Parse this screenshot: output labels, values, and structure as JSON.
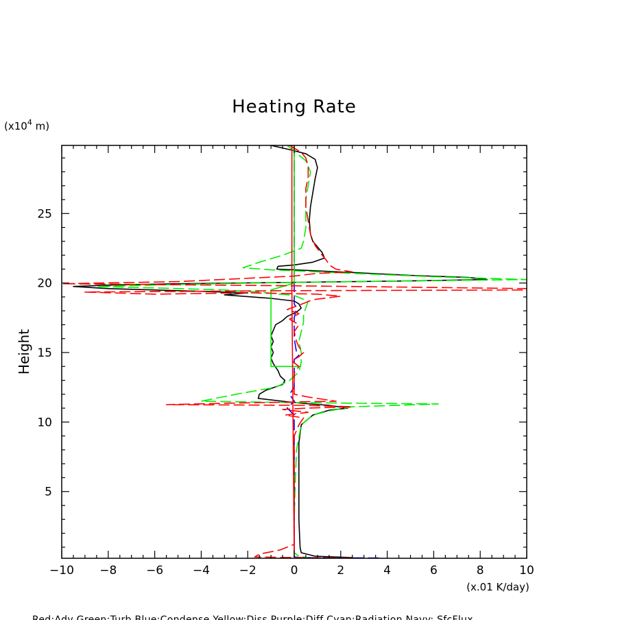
{
  "chart_data": {
    "type": "line",
    "title": "Heating Rate",
    "ylabel": "Height",
    "y_unit_prefix": "(x10",
    "y_unit_exp": "4",
    "y_unit_suffix": " m)",
    "x_unit": "(x.01 K/day)",
    "footer": "Red:Adv  Green:Turb  Blue:Condense  Yellow:Diss  Purple:Diff  Cyan:Radiation  Navy: SfcFlux",
    "xlim": [
      -10,
      10
    ],
    "ylim": [
      0.2,
      29.9
    ],
    "x_ticks": [
      -10,
      -8,
      -6,
      -4,
      -2,
      0,
      2,
      4,
      6,
      8,
      10
    ],
    "y_ticks": [
      5,
      10,
      15,
      20,
      25
    ],
    "grid": false,
    "colors": {
      "black": "#000000",
      "red": "#ff0000",
      "green": "#00ee00",
      "blue": "#0000ff"
    },
    "series": [
      {
        "color": "black",
        "dashed": false,
        "points": [
          [
            -1.0,
            29.9
          ],
          [
            -0.2,
            29.6
          ],
          [
            0.5,
            29.3
          ],
          [
            0.9,
            28.9
          ],
          [
            1.0,
            28.3
          ],
          [
            0.9,
            27.5
          ],
          [
            0.8,
            26.5
          ],
          [
            0.7,
            25.5
          ],
          [
            0.65,
            24.5
          ],
          [
            0.7,
            23.5
          ],
          [
            0.8,
            23.0
          ],
          [
            1.0,
            22.6
          ],
          [
            1.2,
            22.2
          ],
          [
            1.3,
            21.8
          ],
          [
            0.8,
            21.5
          ],
          [
            0.0,
            21.3
          ],
          [
            -0.7,
            21.2
          ],
          [
            -0.75,
            21.0
          ],
          [
            0.0,
            20.95
          ],
          [
            2.0,
            20.8
          ],
          [
            5.0,
            20.55
          ],
          [
            7.5,
            20.4
          ],
          [
            8.3,
            20.25
          ],
          [
            5.0,
            20.15
          ],
          [
            0.0,
            20.05
          ],
          [
            -5.0,
            19.95
          ],
          [
            -8.0,
            19.85
          ],
          [
            -9.5,
            19.75
          ],
          [
            -8.0,
            19.6
          ],
          [
            -5.0,
            19.45
          ],
          [
            -2.0,
            19.3
          ],
          [
            -3.0,
            19.15
          ],
          [
            -1.0,
            18.9
          ],
          [
            0.0,
            18.7
          ],
          [
            0.2,
            18.5
          ],
          [
            0.3,
            18.2
          ],
          [
            0.1,
            17.9
          ],
          [
            -0.3,
            17.6
          ],
          [
            -0.5,
            17.3
          ],
          [
            -0.8,
            17.0
          ],
          [
            -0.9,
            16.6
          ],
          [
            -1.0,
            16.2
          ],
          [
            -0.9,
            15.8
          ],
          [
            -1.0,
            15.4
          ],
          [
            -0.9,
            15.0
          ],
          [
            -1.0,
            14.6
          ],
          [
            -0.9,
            14.2
          ],
          [
            -0.7,
            13.7
          ],
          [
            -0.6,
            13.3
          ],
          [
            -0.4,
            13.0
          ],
          [
            -0.5,
            12.7
          ],
          [
            -1.2,
            12.3
          ],
          [
            -1.5,
            12.0
          ],
          [
            -1.55,
            11.7
          ],
          [
            -0.5,
            11.5
          ],
          [
            0.3,
            11.35
          ],
          [
            1.5,
            11.2
          ],
          [
            2.3,
            11.0
          ],
          [
            1.5,
            10.85
          ],
          [
            0.8,
            10.5
          ],
          [
            0.3,
            9.8
          ],
          [
            0.2,
            8.5
          ],
          [
            0.2,
            6.0
          ],
          [
            0.2,
            3.0
          ],
          [
            0.25,
            1.0
          ],
          [
            0.3,
            0.6
          ],
          [
            0.9,
            0.35
          ],
          [
            2.5,
            0.25
          ]
        ]
      },
      {
        "color": "green",
        "dashed": true,
        "points": [
          [
            -0.3,
            29.9
          ],
          [
            0.0,
            29.5
          ],
          [
            0.2,
            29.2
          ],
          [
            0.5,
            28.8
          ],
          [
            0.7,
            28.0
          ],
          [
            0.6,
            27.0
          ],
          [
            0.5,
            26.0
          ],
          [
            0.5,
            25.0
          ],
          [
            0.5,
            24.0
          ],
          [
            0.4,
            23.0
          ],
          [
            0.3,
            22.5
          ],
          [
            -0.5,
            22.0
          ],
          [
            -1.5,
            21.5
          ],
          [
            -2.2,
            21.1
          ],
          [
            -1.0,
            20.95
          ],
          [
            2.5,
            20.7
          ],
          [
            6.0,
            20.45
          ],
          [
            10.0,
            20.25
          ],
          [
            5.0,
            20.15
          ],
          [
            0.0,
            20.05
          ],
          [
            -5.0,
            19.9
          ],
          [
            -8.5,
            19.75
          ],
          [
            -6.0,
            19.65
          ],
          [
            -3.0,
            19.5
          ],
          [
            -1.5,
            19.35
          ],
          [
            0.0,
            19.1
          ],
          [
            0.6,
            18.7
          ],
          [
            0.5,
            18.2
          ],
          [
            0.4,
            17.8
          ],
          [
            0.4,
            17.2
          ],
          [
            0.3,
            16.5
          ],
          [
            0.2,
            15.8
          ],
          [
            0.3,
            15.0
          ],
          [
            0.3,
            14.3
          ],
          [
            0.2,
            13.6
          ],
          [
            -0.2,
            13.0
          ],
          [
            -0.8,
            12.5
          ],
          [
            -2.5,
            12.0
          ],
          [
            -4.0,
            11.5
          ],
          [
            0.0,
            11.4
          ],
          [
            3.0,
            11.35
          ],
          [
            6.2,
            11.3
          ],
          [
            2.5,
            11.1
          ],
          [
            1.5,
            10.8
          ],
          [
            0.8,
            10.5
          ],
          [
            0.3,
            9.8
          ],
          [
            0.1,
            8.0
          ],
          [
            0.05,
            6.0
          ],
          [
            0.0,
            3.0
          ],
          [
            0.0,
            1.0
          ],
          [
            0.0,
            0.6
          ],
          [
            0.2,
            0.35
          ],
          [
            0.6,
            0.25
          ]
        ]
      },
      {
        "color": "blue",
        "dashed": true,
        "points": [
          [
            0.0,
            29.9
          ],
          [
            0.0,
            26.0
          ],
          [
            0.0,
            22.0
          ],
          [
            0.0,
            20.0
          ],
          [
            0.0,
            18.5
          ],
          [
            0.1,
            18.2
          ],
          [
            0.0,
            17.5
          ],
          [
            0.0,
            16.0
          ],
          [
            0.1,
            15.0
          ],
          [
            0.2,
            14.8
          ],
          [
            0.0,
            14.5
          ],
          [
            0.0,
            12.5
          ],
          [
            -0.2,
            12.0
          ],
          [
            0.0,
            11.5
          ],
          [
            -0.3,
            11.0
          ],
          [
            0.0,
            10.5
          ],
          [
            0.0,
            5.0
          ],
          [
            0.0,
            0.3
          ],
          [
            0.3,
            0.25
          ],
          [
            3.8,
            0.22
          ]
        ]
      },
      {
        "color": "green",
        "dashed": false,
        "points": [
          [
            0.0,
            29.9
          ],
          [
            0.0,
            20.0
          ],
          [
            -1.0,
            19.5
          ],
          [
            -1.0,
            14.0
          ],
          [
            0.3,
            14.0
          ]
        ]
      },
      {
        "color": "red",
        "dashed": false,
        "points": [
          [
            -0.1,
            29.9
          ],
          [
            -0.1,
            19.4
          ],
          [
            -0.05,
            10.0
          ],
          [
            0.0,
            0.3
          ]
        ]
      },
      {
        "color": "red",
        "dashed": true,
        "points": [
          [
            -0.2,
            29.9
          ],
          [
            0.0,
            29.7
          ],
          [
            0.3,
            29.4
          ],
          [
            0.5,
            29.0
          ],
          [
            0.6,
            28.4
          ],
          [
            0.6,
            27.6
          ],
          [
            0.5,
            26.8
          ],
          [
            0.5,
            25.5
          ],
          [
            0.6,
            24.5
          ],
          [
            0.7,
            23.5
          ],
          [
            0.9,
            22.7
          ],
          [
            1.2,
            22.0
          ],
          [
            1.4,
            21.6
          ],
          [
            1.5,
            21.3
          ],
          [
            1.8,
            21.0
          ],
          [
            2.5,
            20.8
          ],
          [
            1.0,
            20.7
          ],
          [
            0.0,
            20.5
          ],
          [
            -5.0,
            20.1
          ],
          [
            -10.0,
            19.95
          ],
          [
            0.0,
            19.8
          ],
          [
            10.0,
            19.6
          ],
          [
            10.0,
            19.5
          ],
          [
            0.0,
            19.45
          ],
          [
            -9.0,
            19.35
          ],
          [
            -6.0,
            19.2
          ],
          [
            -2.0,
            19.3
          ],
          [
            1.0,
            19.2
          ],
          [
            2.0,
            19.05
          ],
          [
            0.8,
            18.8
          ],
          [
            0.2,
            18.4
          ],
          [
            -0.3,
            18.1
          ],
          [
            0.2,
            17.8
          ],
          [
            -0.2,
            17.4
          ],
          [
            0.2,
            17.0
          ],
          [
            0.0,
            16.5
          ],
          [
            0.1,
            15.8
          ],
          [
            0.2,
            15.4
          ],
          [
            0.4,
            15.0
          ],
          [
            0.2,
            14.7
          ],
          [
            -0.1,
            14.4
          ],
          [
            0.2,
            14.0
          ],
          [
            0.0,
            13.5
          ],
          [
            0.0,
            12.5
          ],
          [
            0.0,
            12.0
          ],
          [
            0.6,
            11.8
          ],
          [
            1.8,
            11.5
          ],
          [
            -3.0,
            11.35
          ],
          [
            -5.5,
            11.25
          ],
          [
            0.5,
            11.2
          ],
          [
            2.5,
            11.1
          ],
          [
            0.5,
            11.0
          ],
          [
            -0.5,
            10.9
          ],
          [
            0.6,
            10.7
          ],
          [
            -0.4,
            10.5
          ],
          [
            0.4,
            10.3
          ],
          [
            0.2,
            9.8
          ],
          [
            0.0,
            9.0
          ],
          [
            0.0,
            6.0
          ],
          [
            0.0,
            3.0
          ],
          [
            0.0,
            1.2
          ],
          [
            -0.6,
            0.8
          ],
          [
            -1.5,
            0.5
          ],
          [
            -1.7,
            0.3
          ],
          [
            0.0,
            0.25
          ],
          [
            2.5,
            0.22
          ]
        ]
      }
    ]
  }
}
